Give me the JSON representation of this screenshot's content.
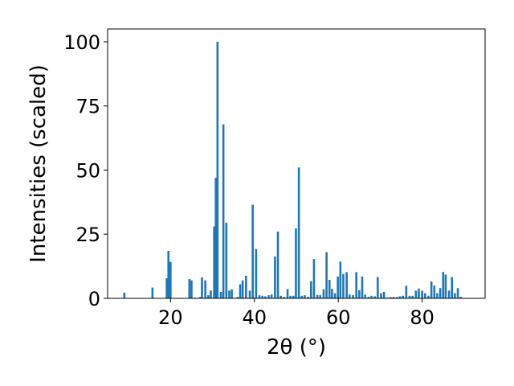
{
  "chart_data": {
    "type": "bar",
    "xlabel": "2θ (°)",
    "ylabel": "Intensities (scaled)",
    "xlim": [
      5,
      95
    ],
    "ylim": [
      0,
      105
    ],
    "xticks": [
      20,
      40,
      60,
      80
    ],
    "yticks": [
      0,
      25,
      50,
      75,
      100
    ],
    "bar_width": 0.5,
    "color": "#1f77b4",
    "x": [
      9,
      15.7,
      19.1,
      19.5,
      20.0,
      24.5,
      25.0,
      25.8,
      27.0,
      27.5,
      28.3,
      29.0,
      29.6,
      30.4,
      30.8,
      31.2,
      32.0,
      32.6,
      33.3,
      34.0,
      34.6,
      36.0,
      36.6,
      37.2,
      38.0,
      38.9,
      39.6,
      40.4,
      41.2,
      41.9,
      42.6,
      43.4,
      44.1,
      44.9,
      45.6,
      46.3,
      47.1,
      47.9,
      48.6,
      49.3,
      49.9,
      50.6,
      51.3,
      52.0,
      52.8,
      53.5,
      54.2,
      55.0,
      55.7,
      56.5,
      57.2,
      57.9,
      58.5,
      59.2,
      59.9,
      60.5,
      61.2,
      62.0,
      62.7,
      63.5,
      64.3,
      65.0,
      65.7,
      66.4,
      67.2,
      67.9,
      68.7,
      69.4,
      70.2,
      70.9,
      71.7,
      72.5,
      73.2,
      74.0,
      74.7,
      75.4,
      76.2,
      77.0,
      77.7,
      78.5,
      79.2,
      80.0,
      80.7,
      81.5,
      82.2,
      82.9,
      83.6,
      84.3,
      85.0,
      85.6,
      86.4,
      87.1,
      87.8,
      88.5,
      89.2
    ],
    "values": [
      2.2,
      4.2,
      7.8,
      18.5,
      14.2,
      7.5,
      7.0,
      0.3,
      0.5,
      8.2,
      7.0,
      1.2,
      3.0,
      28.0,
      47.0,
      100.0,
      2.5,
      67.8,
      29.5,
      3.0,
      3.5,
      0.5,
      5.5,
      7.0,
      8.8,
      3.0,
      36.5,
      19.2,
      1.2,
      1.0,
      0.8,
      1.2,
      1.5,
      16.3,
      26.0,
      1.0,
      0.6,
      3.6,
      1.0,
      1.0,
      27.3,
      51.0,
      1.0,
      1.2,
      0.6,
      6.7,
      15.3,
      1.3,
      1.2,
      3.5,
      18.0,
      7.2,
      3.7,
      2.0,
      8.5,
      14.3,
      9.5,
      10.2,
      1.5,
      1.3,
      10.2,
      3.2,
      8.5,
      1.5,
      0.6,
      1.0,
      0.8,
      8.3,
      2.0,
      2.5,
      0.3,
      0.5,
      0.6,
      0.5,
      0.8,
      1.0,
      4.9,
      1.0,
      1.0,
      3.0,
      3.8,
      3.0,
      2.0,
      1.0,
      6.6,
      5.0,
      2.0,
      4.0,
      10.3,
      9.3,
      3.0,
      8.3,
      2.0,
      4.0,
      0.6
    ],
    "grid": false,
    "legend": "none"
  }
}
